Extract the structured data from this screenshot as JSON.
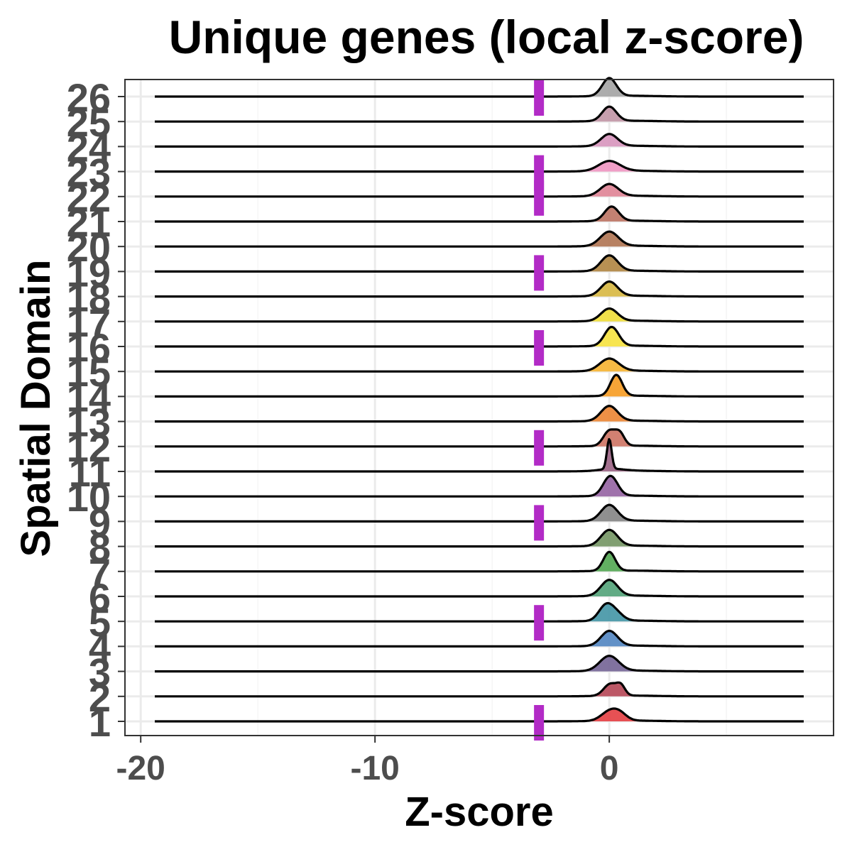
{
  "chart_data": {
    "type": "ridgeline",
    "title": "Unique genes (local z-score)",
    "xlabel": "Z-score",
    "ylabel": "Spatial Domain",
    "xlim": [
      -20.7,
      9.6
    ],
    "x_ticks": [
      -20,
      -10,
      0
    ],
    "x_tick_labels": [
      "-20",
      "-10",
      "0"
    ],
    "line_range": [
      -19.4,
      8.3
    ],
    "threshold": -3,
    "grid": true,
    "legend": "none",
    "categories": [
      "1",
      "2",
      "3",
      "4",
      "5",
      "6",
      "7",
      "8",
      "9",
      "10",
      "11",
      "12",
      "13",
      "14",
      "15",
      "16",
      "17",
      "18",
      "19",
      "20",
      "21",
      "22",
      "23",
      "24",
      "25",
      "26"
    ],
    "series": [
      {
        "name": "1",
        "color": "#e6484b",
        "peaks": [
          {
            "mu": 0.0,
            "sigma": 0.35,
            "amp": 0.45
          },
          {
            "mu": 0.45,
            "sigma": 0.3,
            "amp": 0.32
          }
        ],
        "highlight": true
      },
      {
        "name": "2",
        "color": "#b84f5e",
        "peaks": [
          {
            "mu": 0.05,
            "sigma": 0.28,
            "amp": 0.6
          },
          {
            "mu": 0.5,
            "sigma": 0.18,
            "amp": 0.45
          }
        ],
        "highlight": false
      },
      {
        "name": "3",
        "color": "#7a6a9a",
        "peaks": [
          {
            "mu": 0.0,
            "sigma": 0.4,
            "amp": 0.75
          }
        ],
        "highlight": false
      },
      {
        "name": "4",
        "color": "#5a8bc4",
        "peaks": [
          {
            "mu": 0.0,
            "sigma": 0.35,
            "amp": 0.75
          }
        ],
        "highlight": false
      },
      {
        "name": "5",
        "color": "#4c9aaa",
        "peaks": [
          {
            "mu": -0.15,
            "sigma": 0.3,
            "amp": 0.75
          },
          {
            "mu": 0.3,
            "sigma": 0.3,
            "amp": 0.35
          }
        ],
        "highlight": true
      },
      {
        "name": "6",
        "color": "#5aa67e",
        "peaks": [
          {
            "mu": 0.0,
            "sigma": 0.35,
            "amp": 0.8
          }
        ],
        "highlight": false
      },
      {
        "name": "7",
        "color": "#5aab5a",
        "peaks": [
          {
            "mu": 0.0,
            "sigma": 0.25,
            "amp": 0.95
          }
        ],
        "highlight": false
      },
      {
        "name": "8",
        "color": "#7a9a6a",
        "peaks": [
          {
            "mu": 0.0,
            "sigma": 0.35,
            "amp": 0.8
          }
        ],
        "highlight": false
      },
      {
        "name": "9",
        "color": "#8a8a8a",
        "peaks": [
          {
            "mu": 0.0,
            "sigma": 0.35,
            "amp": 0.8
          }
        ],
        "highlight": true
      },
      {
        "name": "10",
        "color": "#9a6aa6",
        "peaks": [
          {
            "mu": 0.05,
            "sigma": 0.3,
            "amp": 1.0
          }
        ],
        "highlight": false
      },
      {
        "name": "11",
        "color": "#a06a8a",
        "peaks": [
          {
            "mu": 0.0,
            "sigma": 0.1,
            "amp": 1.5
          },
          {
            "mu": 0.1,
            "sigma": 0.5,
            "amp": 0.1
          }
        ],
        "highlight": false
      },
      {
        "name": "12",
        "color": "#d07a6a",
        "peaks": [
          {
            "mu": 0.0,
            "sigma": 0.25,
            "amp": 0.75
          },
          {
            "mu": 0.45,
            "sigma": 0.2,
            "amp": 0.6
          }
        ],
        "highlight": true
      },
      {
        "name": "13",
        "color": "#ec8a3c",
        "peaks": [
          {
            "mu": 0.0,
            "sigma": 0.35,
            "amp": 0.75
          }
        ],
        "highlight": false
      },
      {
        "name": "14",
        "color": "#f7a02c",
        "peaks": [
          {
            "mu": 0.3,
            "sigma": 0.25,
            "amp": 1.05
          }
        ],
        "highlight": false
      },
      {
        "name": "15",
        "color": "#f5b63a",
        "peaks": [
          {
            "mu": 0.0,
            "sigma": 0.4,
            "amp": 0.62
          }
        ],
        "highlight": false
      },
      {
        "name": "16",
        "color": "#f7e448",
        "peaks": [
          {
            "mu": 0.1,
            "sigma": 0.3,
            "amp": 0.95
          }
        ],
        "highlight": true
      },
      {
        "name": "17",
        "color": "#f0de40",
        "peaks": [
          {
            "mu": 0.0,
            "sigma": 0.35,
            "amp": 0.62
          }
        ],
        "highlight": false
      },
      {
        "name": "18",
        "color": "#d9bb4a",
        "peaks": [
          {
            "mu": 0.0,
            "sigma": 0.35,
            "amp": 0.72
          }
        ],
        "highlight": false
      },
      {
        "name": "19",
        "color": "#b38a4a",
        "peaks": [
          {
            "mu": 0.0,
            "sigma": 0.35,
            "amp": 0.78
          }
        ],
        "highlight": true
      },
      {
        "name": "20",
        "color": "#b37a5a",
        "peaks": [
          {
            "mu": 0.0,
            "sigma": 0.38,
            "amp": 0.72
          }
        ],
        "highlight": false
      },
      {
        "name": "21",
        "color": "#c07a6a",
        "peaks": [
          {
            "mu": 0.1,
            "sigma": 0.3,
            "amp": 0.72
          }
        ],
        "highlight": false
      },
      {
        "name": "22",
        "color": "#e0899a",
        "peaks": [
          {
            "mu": 0.0,
            "sigma": 0.38,
            "amp": 0.6
          }
        ],
        "highlight": true
      },
      {
        "name": "23",
        "color": "#f09ac4",
        "peaks": [
          {
            "mu": 0.0,
            "sigma": 0.45,
            "amp": 0.5
          }
        ],
        "highlight": true
      },
      {
        "name": "24",
        "color": "#d99ac0",
        "peaks": [
          {
            "mu": 0.0,
            "sigma": 0.35,
            "amp": 0.6
          }
        ],
        "highlight": false
      },
      {
        "name": "25",
        "color": "#c49aaa",
        "peaks": [
          {
            "mu": 0.0,
            "sigma": 0.3,
            "amp": 0.72
          }
        ],
        "highlight": false
      },
      {
        "name": "26",
        "color": "#a8a8a8",
        "peaks": [
          {
            "mu": 0.0,
            "sigma": 0.3,
            "amp": 0.9
          }
        ],
        "highlight": true
      }
    ],
    "colors": {
      "threshold_marker": "#b22bc6",
      "panel_border": "#333333",
      "grid_major": "#ebebeb",
      "grid_minor": "#f5f5f5",
      "ridge_line": "#000000",
      "tick_text": "#4d4d4d"
    }
  }
}
